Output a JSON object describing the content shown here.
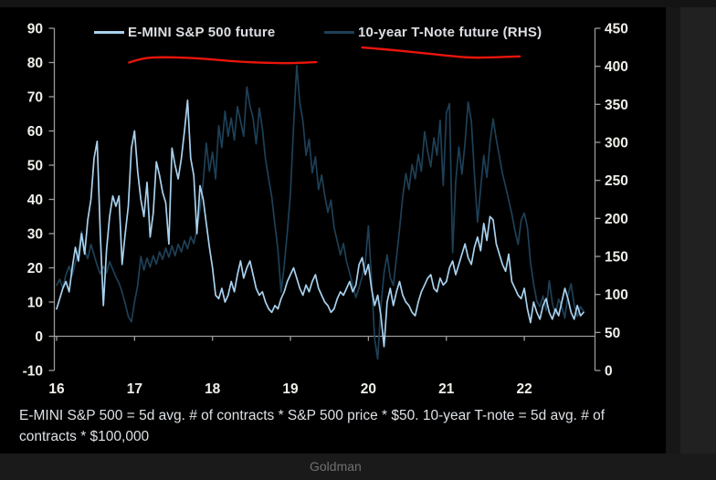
{
  "legend": {
    "note": "labels mirror chart_data.series names"
  },
  "footer": {
    "brand": "Goldman"
  },
  "chart_data": {
    "type": "line",
    "title": "",
    "x_axis": {
      "label": "",
      "ticks": [
        16,
        17,
        18,
        19,
        20,
        21,
        22
      ],
      "range": [
        16,
        22.9
      ],
      "unit": "year"
    },
    "left_axis": {
      "label": "",
      "ticks": [
        90,
        80,
        70,
        60,
        50,
        40,
        30,
        20,
        10,
        0,
        -10
      ],
      "range": [
        -10,
        90
      ]
    },
    "right_axis": {
      "label": "",
      "ticks": [
        450,
        400,
        350,
        300,
        250,
        200,
        150,
        100,
        50,
        0
      ],
      "range": [
        0,
        450
      ]
    },
    "grid": false,
    "legend_position": "top",
    "series": [
      {
        "name": "E-MINI S&P 500 future",
        "axis": "left",
        "color": "#a8d1ee",
        "x_start": 16.0,
        "x_step": 0.04,
        "values": [
          8,
          11,
          14,
          16,
          13,
          20,
          26,
          22,
          30,
          24,
          34,
          40,
          52,
          57,
          30,
          9,
          25,
          35,
          41,
          38,
          41,
          21,
          30,
          38,
          55,
          60,
          48,
          40,
          35,
          45,
          29,
          36,
          51,
          47,
          42,
          39,
          27,
          55,
          50,
          46,
          52,
          60,
          69,
          52,
          47,
          30,
          44,
          40,
          33,
          26,
          20,
          12,
          11,
          14,
          10,
          12,
          16,
          13,
          18,
          22,
          17,
          20,
          22,
          18,
          14,
          12,
          13,
          10,
          8,
          7,
          9,
          8,
          11,
          13,
          16,
          18,
          20,
          17,
          14,
          12,
          15,
          13,
          16,
          18,
          14,
          12,
          10,
          9,
          7,
          8,
          11,
          13,
          12,
          14,
          16,
          13,
          15,
          21,
          23,
          18,
          21,
          14,
          9,
          12,
          6,
          -3,
          10,
          14,
          9,
          13,
          16,
          12,
          10,
          9,
          7,
          6,
          10,
          13,
          15,
          17,
          18,
          14,
          13,
          17,
          15,
          16,
          20,
          22,
          18,
          21,
          24,
          27,
          23,
          21,
          26,
          29,
          25,
          33,
          28,
          35,
          34,
          27,
          24,
          21,
          19,
          24,
          16,
          14,
          12,
          11,
          14,
          8,
          4,
          10,
          7,
          5,
          9,
          11,
          7,
          5,
          8,
          6,
          10,
          14,
          11,
          7,
          5,
          9,
          6,
          7
        ]
      },
      {
        "name": "10-year T-Note future (RHS)",
        "axis": "right",
        "color": "#1e4057",
        "x_start": 16.0,
        "x_step": 0.04,
        "values": [
          112,
          120,
          108,
          126,
          137,
          125,
          142,
          155,
          183,
          158,
          147,
          166,
          152,
          138,
          127,
          137,
          128,
          143,
          133,
          123,
          115,
          103,
          88,
          71,
          64,
          90,
          112,
          150,
          132,
          148,
          136,
          151,
          140,
          156,
          146,
          161,
          149,
          164,
          151,
          166,
          156,
          171,
          160,
          176,
          167,
          186,
          212,
          248,
          299,
          262,
          287,
          252,
          322,
          293,
          341,
          308,
          332,
          303,
          347,
          328,
          308,
          373,
          348,
          332,
          298,
          345,
          318,
          278,
          252,
          228,
          192,
          158,
          103,
          138,
          182,
          232,
          322,
          401,
          352,
          328,
          283,
          304,
          260,
          281,
          238,
          257,
          230,
          208,
          224,
          188,
          170,
          152,
          167,
          143,
          128,
          112,
          96,
          109,
          124,
          142,
          190,
          120,
          42,
          15,
          85,
          128,
          152,
          122,
          112,
          148,
          186,
          229,
          259,
          238,
          271,
          252,
          284,
          262,
          314,
          288,
          268,
          306,
          283,
          329,
          243,
          339,
          351,
          155,
          248,
          294,
          258,
          299,
          353,
          328,
          258,
          195,
          239,
          283,
          254,
          299,
          331,
          304,
          282,
          259,
          242,
          224,
          206,
          184,
          166,
          198,
          207,
          188,
          142,
          114,
          91,
          84,
          98,
          79,
          118,
          89,
          74,
          94,
          84,
          69,
          99,
          114,
          87,
          71,
          84,
          78
        ]
      }
    ],
    "annotations": [
      {
        "type": "freehand-line",
        "color": "#ea150b",
        "axis": "left",
        "points": [
          [
            16.93,
            80.0
          ],
          [
            17.1,
            81.3
          ],
          [
            17.35,
            81.6
          ],
          [
            17.7,
            81.4
          ],
          [
            18.0,
            80.9
          ],
          [
            18.35,
            80.2
          ],
          [
            18.7,
            79.9
          ],
          [
            19.0,
            79.8
          ],
          [
            19.33,
            80.1
          ]
        ]
      },
      {
        "type": "freehand-line",
        "color": "#ea150b",
        "axis": "left",
        "points": [
          [
            19.92,
            84.4
          ],
          [
            20.2,
            83.9
          ],
          [
            20.6,
            83.0
          ],
          [
            21.0,
            82.0
          ],
          [
            21.3,
            81.4
          ],
          [
            21.6,
            81.5
          ],
          [
            21.94,
            81.8
          ]
        ]
      }
    ],
    "footnote_lines": [
      "E-MINI S&P 500 = 5d avg. # of contracts * S&P 500 price * $50. 10-year T-note = 5d avg. # of",
      "contracts * $100,000"
    ],
    "style": {
      "background": "#000000",
      "axis_color": "#9b9b9b",
      "tick_label_color": "#f0efe9",
      "series1_color": "#a8d1ee",
      "series2_color": "#1e4057",
      "annotation_color": "#ea150b"
    }
  }
}
